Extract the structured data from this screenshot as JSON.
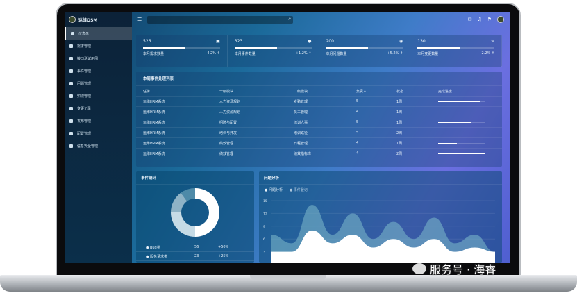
{
  "app": {
    "brand": "运维OSM"
  },
  "sidebar": {
    "items": [
      {
        "label": "仪表盘",
        "active": true
      },
      {
        "label": "需求管理"
      },
      {
        "label": "接口测试用例"
      },
      {
        "label": "事件管理"
      },
      {
        "label": "问题管理"
      },
      {
        "label": "知识管理"
      },
      {
        "label": "变更记录"
      },
      {
        "label": "发布管理"
      },
      {
        "label": "配置管理"
      },
      {
        "label": "信息安全管理"
      }
    ]
  },
  "topbar": {
    "icons": [
      "menu-icon",
      "search-icon",
      "mail-icon",
      "bell-icon",
      "flag-icon",
      "avatar"
    ]
  },
  "stats": [
    {
      "value": "526",
      "label": "本月需求数量",
      "change": "+4.2% ↑",
      "progress": 0.55
    },
    {
      "value": "323",
      "label": "本月事件数量",
      "change": "+1.2% ↑",
      "progress": 0.55
    },
    {
      "value": "200",
      "label": "本月问题数量",
      "change": "+5.2% ↑",
      "progress": 0.55
    },
    {
      "value": "130",
      "label": "本月变更数量",
      "change": "+2.2% ↑",
      "progress": 0.55
    }
  ],
  "table": {
    "title": "本周事件处理列表",
    "headers": [
      "任务",
      "一级模块",
      "二级模块",
      "负责人",
      "状态",
      "完成进度"
    ],
    "rows": [
      [
        "运维HRM系统",
        "人力资源规划",
        "考勤管理",
        "5",
        "1周",
        0.9
      ],
      [
        "运维HRM系统",
        "人力资源规划",
        "员工管理",
        "4",
        "1周",
        0.6
      ],
      [
        "运维HRM系统",
        "招聘与配置",
        "培训人事",
        "5",
        "1周",
        0.7
      ],
      [
        "运维HRM系统",
        "培训与开发",
        "培训路径",
        "5",
        "2周",
        1.0
      ],
      [
        "运维HRM系统",
        "绩效管理",
        "日程管理",
        "4",
        "1周",
        0.4
      ],
      [
        "运维HRM系统",
        "绩效管理",
        "绩效指标库",
        "4",
        "2周",
        1.0
      ]
    ]
  },
  "donut": {
    "title": "事件统计",
    "slices": [
      0.5,
      0.25,
      0.15,
      0.1
    ],
    "legend": [
      {
        "name": "Bug类",
        "count": "56",
        "pct": "+50%"
      },
      {
        "name": "服务请求类",
        "count": "23",
        "pct": "+25%"
      }
    ]
  },
  "chart_data": {
    "type": "area",
    "title": "问题分析",
    "legend": [
      "问题分析",
      "事件登记"
    ],
    "yticks": [
      "0",
      "3",
      "6",
      "9",
      "12",
      "15"
    ],
    "ylim": [
      0,
      15
    ],
    "series": [
      {
        "name": "事件登记",
        "values": [
          7,
          5,
          14,
          7,
          12,
          6,
          10,
          6,
          11,
          5,
          7,
          3
        ]
      },
      {
        "name": "问题分析",
        "values": [
          3,
          3,
          8,
          5,
          7,
          4,
          6,
          4,
          6,
          3,
          4,
          3
        ]
      }
    ]
  },
  "watermark": "服务号 · 海睿"
}
